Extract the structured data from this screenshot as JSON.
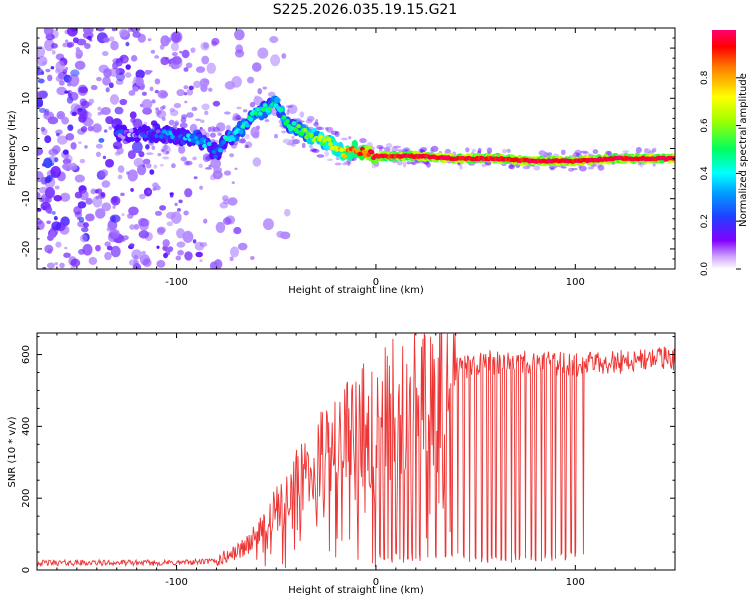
{
  "title": "S225.2026.035.19.15.G21",
  "chart_data": [
    {
      "type": "heatmap",
      "name": "spectrogram",
      "xlabel": "Height of straight line (km)",
      "ylabel": "Frequency (Hz)",
      "xlim": [
        -170,
        150
      ],
      "ylim": [
        -24,
        24
      ],
      "xticks": [
        -100,
        0,
        100
      ],
      "xtick_labels": [
        "-100",
        "0",
        "100"
      ],
      "yticks": [
        -20,
        -10,
        0,
        10,
        20
      ],
      "ytick_labels": [
        "-20",
        "-10",
        "0",
        "10",
        "20"
      ],
      "ridge": {
        "x": [
          -130,
          -110,
          -100,
          -90,
          -85,
          -80,
          -75,
          -70,
          -65,
          -60,
          -55,
          -50,
          -45,
          -40,
          -35,
          -30,
          -25,
          -20,
          -15,
          -10,
          -5,
          0,
          20,
          40,
          60,
          80,
          100,
          120,
          150
        ],
        "freq": [
          3,
          3,
          2.5,
          2,
          1,
          -1,
          2,
          3,
          5,
          7,
          8,
          9,
          5,
          4,
          3,
          2,
          1.5,
          0,
          -1,
          0,
          -1,
          -1.5,
          -1.5,
          -2,
          -2,
          -2.5,
          -2.5,
          -2,
          -2
        ],
        "amplitude": [
          0.1,
          0.15,
          0.2,
          0.25,
          0.25,
          0.2,
          0.3,
          0.3,
          0.35,
          0.35,
          0.4,
          0.35,
          0.35,
          0.4,
          0.45,
          0.5,
          0.55,
          0.65,
          0.75,
          0.8,
          0.85,
          0.9,
          0.95,
          0.95,
          0.9,
          0.95,
          0.95,
          0.95,
          0.95
        ]
      },
      "colorbar": {
        "label": "Normalized spectral amplitude",
        "range": [
          0,
          1
        ],
        "ticks": [
          0.0,
          0.2,
          0.4,
          0.6,
          0.8
        ],
        "tick_labels": [
          "0.0",
          "0.2",
          "0.4",
          "0.6",
          "0.8"
        ],
        "colormap": [
          "#ffffff",
          "#5a00ff",
          "#0080ff",
          "#00ffff",
          "#00ff40",
          "#c0ff00",
          "#ffff00",
          "#ff8000",
          "#ff0000",
          "#ff0060"
        ]
      }
    },
    {
      "type": "line",
      "name": "snr",
      "xlabel": "Height of straight line (km)",
      "ylabel": "SNR (10 * v/v)",
      "xlim": [
        -170,
        150
      ],
      "ylim": [
        0,
        660
      ],
      "xticks": [
        -100,
        0,
        100
      ],
      "xtick_labels": [
        "-100",
        "0",
        "100"
      ],
      "yticks": [
        0,
        200,
        400,
        600
      ],
      "ytick_labels": [
        "0",
        "200",
        "400",
        "600"
      ],
      "color": "#ee3333",
      "trend": {
        "x": [
          -170,
          -100,
          -80,
          -70,
          -60,
          -50,
          -40,
          -30,
          -20,
          -10,
          0,
          10,
          20,
          30,
          40,
          60,
          80,
          100,
          120,
          150
        ],
        "y": [
          20,
          20,
          25,
          50,
          90,
          160,
          230,
          290,
          350,
          390,
          420,
          460,
          490,
          520,
          560,
          580,
          580,
          570,
          580,
          590
        ]
      },
      "dropouts_x": [
        2,
        4,
        6,
        8,
        10,
        12,
        14,
        16,
        18,
        20,
        22,
        26,
        30,
        35,
        38,
        41,
        44,
        47,
        50,
        53,
        56,
        58,
        60,
        63,
        65,
        68,
        70,
        72,
        75,
        78,
        80,
        83,
        85,
        88,
        90,
        93,
        95,
        98,
        100,
        104
      ]
    }
  ]
}
